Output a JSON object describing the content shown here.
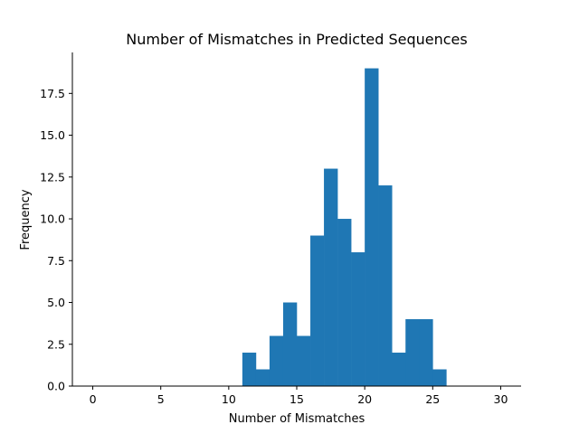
{
  "chart_data": {
    "type": "bar",
    "title": "Number of Mismatches in Predicted Sequences",
    "xlabel": "Number of Mismatches",
    "ylabel": "Frequency",
    "xlim": [
      -1.5,
      31.5
    ],
    "ylim": [
      0,
      19.95
    ],
    "xticks": [
      0,
      5,
      10,
      15,
      20,
      25,
      30
    ],
    "xtick_labels": [
      "0",
      "5",
      "10",
      "15",
      "20",
      "25",
      "30"
    ],
    "yticks": [
      0,
      2.5,
      5,
      7.5,
      10,
      12.5,
      15,
      17.5
    ],
    "ytick_labels": [
      "0.0",
      "2.5",
      "5.0",
      "7.5",
      "10.0",
      "12.5",
      "15.0",
      "17.5"
    ],
    "grid": false,
    "bin_width": 1,
    "bins": [
      {
        "x0": 0,
        "count": 0
      },
      {
        "x0": 1,
        "count": 0
      },
      {
        "x0": 2,
        "count": 0
      },
      {
        "x0": 3,
        "count": 0
      },
      {
        "x0": 4,
        "count": 0
      },
      {
        "x0": 5,
        "count": 0
      },
      {
        "x0": 6,
        "count": 0
      },
      {
        "x0": 7,
        "count": 0
      },
      {
        "x0": 8,
        "count": 0
      },
      {
        "x0": 9,
        "count": 0
      },
      {
        "x0": 10,
        "count": 0
      },
      {
        "x0": 11,
        "count": 2
      },
      {
        "x0": 12,
        "count": 1
      },
      {
        "x0": 13,
        "count": 3
      },
      {
        "x0": 14,
        "count": 5
      },
      {
        "x0": 15,
        "count": 3
      },
      {
        "x0": 16,
        "count": 9
      },
      {
        "x0": 17,
        "count": 13
      },
      {
        "x0": 18,
        "count": 10
      },
      {
        "x0": 19,
        "count": 8
      },
      {
        "x0": 20,
        "count": 19
      },
      {
        "x0": 21,
        "count": 12
      },
      {
        "x0": 22,
        "count": 2
      },
      {
        "x0": 23,
        "count": 4
      },
      {
        "x0": 24,
        "count": 4
      },
      {
        "x0": 25,
        "count": 1
      },
      {
        "x0": 26,
        "count": 0
      },
      {
        "x0": 27,
        "count": 0
      },
      {
        "x0": 28,
        "count": 0
      },
      {
        "x0": 29,
        "count": 0
      }
    ],
    "bar_color": "#1f77b4"
  }
}
